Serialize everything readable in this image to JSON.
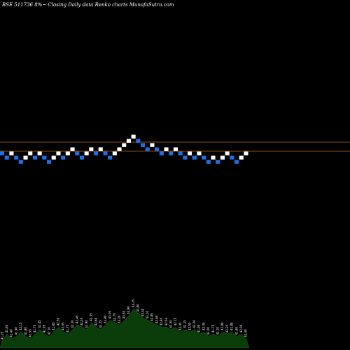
{
  "chart_data": {
    "type": "renko",
    "title": "BSE 511736  8%~  Closing Daily data  Renko  charts MunafaSutra.com",
    "colors": {
      "background": "#000000",
      "up_brick": "#ffffff",
      "down_brick": "#1e6fe6",
      "reference_line": "#b5651d",
      "volume_fill": "#0b3d0b"
    },
    "reference_levels": [
      12,
      10
    ],
    "y_range": [
      0,
      20
    ],
    "bricks": [
      {
        "level": 10,
        "dir": "down"
      },
      {
        "level": 9,
        "dir": "down"
      },
      {
        "level": 10,
        "dir": "up"
      },
      {
        "level": 9,
        "dir": "down"
      },
      {
        "level": 8,
        "dir": "down"
      },
      {
        "level": 9,
        "dir": "up"
      },
      {
        "level": 10,
        "dir": "up"
      },
      {
        "level": 9,
        "dir": "down"
      },
      {
        "level": 10,
        "dir": "up"
      },
      {
        "level": 9,
        "dir": "down"
      },
      {
        "level": 8,
        "dir": "down"
      },
      {
        "level": 9,
        "dir": "up"
      },
      {
        "level": 10,
        "dir": "up"
      },
      {
        "level": 9,
        "dir": "down"
      },
      {
        "level": 10,
        "dir": "up"
      },
      {
        "level": 11,
        "dir": "up"
      },
      {
        "level": 10,
        "dir": "down"
      },
      {
        "level": 9,
        "dir": "down"
      },
      {
        "level": 10,
        "dir": "up"
      },
      {
        "level": 11,
        "dir": "up"
      },
      {
        "level": 10,
        "dir": "down"
      },
      {
        "level": 11,
        "dir": "up"
      },
      {
        "level": 10,
        "dir": "down"
      },
      {
        "level": 9,
        "dir": "down"
      },
      {
        "level": 10,
        "dir": "up"
      },
      {
        "level": 11,
        "dir": "up"
      },
      {
        "level": 12,
        "dir": "up"
      },
      {
        "level": 13,
        "dir": "up"
      },
      {
        "level": 14,
        "dir": "up"
      },
      {
        "level": 13,
        "dir": "down"
      },
      {
        "level": 12,
        "dir": "down"
      },
      {
        "level": 11,
        "dir": "down"
      },
      {
        "level": 12,
        "dir": "up"
      },
      {
        "level": 11,
        "dir": "down"
      },
      {
        "level": 10,
        "dir": "down"
      },
      {
        "level": 11,
        "dir": "up"
      },
      {
        "level": 10,
        "dir": "down"
      },
      {
        "level": 11,
        "dir": "up"
      },
      {
        "level": 10,
        "dir": "down"
      },
      {
        "level": 9,
        "dir": "down"
      },
      {
        "level": 10,
        "dir": "up"
      },
      {
        "level": 9,
        "dir": "down"
      },
      {
        "level": 10,
        "dir": "up"
      },
      {
        "level": 9,
        "dir": "down"
      },
      {
        "level": 8,
        "dir": "down"
      },
      {
        "level": 9,
        "dir": "up"
      },
      {
        "level": 8,
        "dir": "down"
      },
      {
        "level": 9,
        "dir": "up"
      },
      {
        "level": 10,
        "dir": "up"
      },
      {
        "level": 9,
        "dir": "down"
      },
      {
        "level": 8,
        "dir": "down"
      },
      {
        "level": 9,
        "dir": "up"
      },
      {
        "level": 10,
        "dir": "up"
      }
    ],
    "volume_series": [
      3,
      6,
      4,
      5,
      7,
      5,
      4,
      6,
      8,
      6,
      5,
      7,
      9,
      7,
      6,
      8,
      10,
      9,
      8,
      11,
      9,
      8,
      10,
      12,
      11,
      10,
      12,
      14,
      17,
      15,
      13,
      12,
      11,
      10,
      9,
      9,
      8,
      9,
      7,
      8,
      7,
      8,
      6,
      7,
      5,
      6,
      5,
      7,
      6,
      7,
      5,
      6,
      4
    ],
    "volume_labels": [
      "41.25",
      "41.60",
      "41.40",
      "41.90",
      "42.15",
      "41.80",
      "41.55",
      "41.70",
      "41.45",
      "41.95",
      "42.10",
      "41.85",
      "42.30",
      "42.05",
      "41.75",
      "42.20",
      "42.45",
      "42.10",
      "41.90",
      "42.35",
      "42.60",
      "42.25",
      "42.80",
      "43.05",
      "42.70",
      "43.20",
      "43.55",
      "43.90",
      "44.25",
      "43.80",
      "43.40",
      "43.10",
      "42.85",
      "42.60",
      "42.95",
      "42.50",
      "42.30",
      "42.75",
      "42.40",
      "42.15",
      "42.55",
      "42.20",
      "41.95",
      "42.35",
      "42.00",
      "41.70",
      "42.10",
      "41.80",
      "42.25",
      "41.85",
      "41.60",
      "42.05",
      "42.40"
    ]
  }
}
